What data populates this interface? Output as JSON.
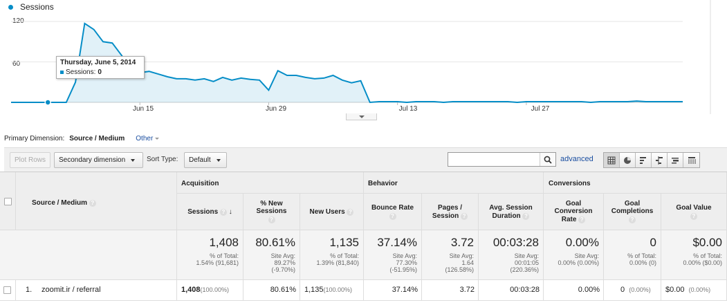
{
  "chart_data": {
    "type": "area",
    "series": [
      {
        "name": "Sessions",
        "color": "#058dc7"
      }
    ],
    "y_ticks": [
      "120",
      "60"
    ],
    "ylim": [
      0,
      120
    ],
    "x_tick_labels": [
      "Jun 15",
      "Jun 29",
      "Jul 13",
      "Jul 27"
    ],
    "x_tick_days": [
      15,
      29,
      43,
      57
    ],
    "x_start_day": 1,
    "x": [
      1,
      2,
      3,
      4,
      5,
      6,
      7,
      8,
      9,
      10,
      11,
      12,
      13,
      14,
      15,
      16,
      17,
      18,
      19,
      20,
      21,
      22,
      23,
      24,
      25,
      26,
      27,
      28,
      29,
      30,
      31,
      32,
      33,
      34,
      35,
      36,
      37,
      38,
      39,
      40,
      41,
      42,
      43,
      44,
      45,
      46,
      47,
      48,
      49,
      50,
      51,
      52,
      53,
      54,
      55,
      56,
      57,
      58,
      59,
      60,
      61,
      62,
      63,
      64,
      65,
      66,
      67,
      68,
      69,
      70,
      71,
      72,
      73,
      74
    ],
    "values": [
      0,
      0,
      0,
      0,
      0,
      0,
      0,
      30,
      117,
      108,
      90,
      88,
      70,
      50,
      44,
      46,
      42,
      38,
      35,
      35,
      33,
      35,
      31,
      37,
      33,
      36,
      34,
      33,
      18,
      47,
      40,
      40,
      37,
      35,
      36,
      40,
      33,
      29,
      32,
      0,
      1,
      1,
      1,
      0,
      1,
      1,
      1,
      0,
      1,
      1,
      1,
      1,
      1,
      1,
      1,
      0,
      1,
      1,
      1,
      1,
      1,
      1,
      1,
      0,
      1,
      1,
      1,
      1,
      2,
      1,
      1,
      1,
      1,
      1
    ],
    "highlight": {
      "x": 5,
      "value": 0
    }
  },
  "legend_label": "Sessions",
  "tooltip": {
    "date": "Thursday, June 5, 2014",
    "label": "Sessions:",
    "value": "0"
  },
  "primary_dimension": {
    "label": "Primary Dimension:",
    "selected": "Source / Medium",
    "other": "Other"
  },
  "toolbar": {
    "plot_rows": "Plot Rows",
    "secondary": "Secondary dimension",
    "sort_label": "Sort Type:",
    "sort_value": "Default",
    "search_value": "",
    "advanced": "advanced",
    "view_icons": [
      "table-view-icon",
      "pie-view-icon",
      "bar-view-icon",
      "comparison-view-icon",
      "term-cloud-icon",
      "pivot-view-icon"
    ]
  },
  "table": {
    "dim_header": "Source / Medium",
    "groups": {
      "acquisition": "Acquisition",
      "behavior": "Behavior",
      "conversions": "Conversions"
    },
    "cols": {
      "sessions": "Sessions",
      "new_sessions": [
        "% New",
        "Sessions"
      ],
      "new_users": "New Users",
      "bounce": "Bounce Rate",
      "pages": [
        "Pages /",
        "Session"
      ],
      "duration": [
        "Avg. Session",
        "Duration"
      ],
      "conv_rate": [
        "Goal",
        "Conversion",
        "Rate"
      ],
      "completions": [
        "Goal",
        "Completions"
      ],
      "value": "Goal Value"
    },
    "totals": {
      "sessions": {
        "big": "1,408",
        "s1": "% of Total:",
        "s2": "1.54% (91,681)"
      },
      "new_sessions": {
        "big": "80.61%",
        "s1": "Site Avg:",
        "s2": "89.27%",
        "s3": "(-9.70%)"
      },
      "new_users": {
        "big": "1,135",
        "s1": "% of Total:",
        "s2": "1.39% (81,840)"
      },
      "bounce": {
        "big": "37.14%",
        "s1": "Site Avg:",
        "s2": "77.30%",
        "s3": "(-51.95%)"
      },
      "pages": {
        "big": "3.72",
        "s1": "Site Avg:",
        "s2": "1.64",
        "s3": "(126.58%)"
      },
      "duration": {
        "big": "00:03:28",
        "s1": "Site Avg:",
        "s2": "00:01:05",
        "s3": "(220.36%)"
      },
      "conv_rate": {
        "big": "0.00%",
        "s1": "Site Avg:",
        "s2": "0.00% (0.00%)"
      },
      "completions": {
        "big": "0",
        "s1": "% of Total:",
        "s2": "0.00% (0)"
      },
      "value": {
        "big": "$0.00",
        "s1": "% of Total:",
        "s2": "0.00% ($0.00)"
      }
    },
    "rows": [
      {
        "index": "1.",
        "source": "zoomit.ir / referral",
        "sessions": "1,408",
        "sessions_pct": "(100.00%)",
        "new_sessions": "80.61%",
        "new_users": "1,135",
        "new_users_pct": "(100.00%)",
        "bounce": "37.14%",
        "pages": "3.72",
        "duration": "00:03:28",
        "conv_rate": "0.00%",
        "completions": "0",
        "completions_pct": "(0.00%)",
        "value": "$0.00",
        "value_pct": "(0.00%)"
      }
    ]
  }
}
